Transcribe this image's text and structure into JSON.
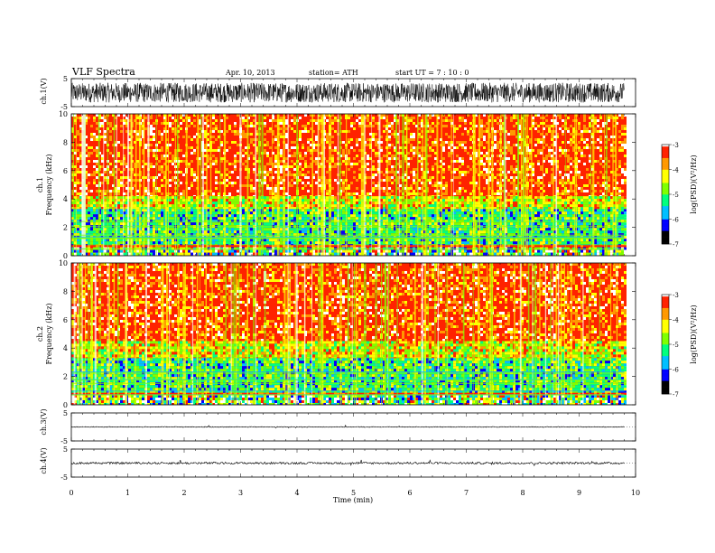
{
  "header": {
    "title": "VLF  Spectra",
    "date": "Apr. 10, 2013",
    "station": "station= ATH",
    "start": "start  UT  =   7  : 10 : 0"
  },
  "chart_data": [
    {
      "id": "ch1-waveform",
      "type": "line",
      "ylabel": "ch.1(V)",
      "ylim": [
        -5,
        5
      ],
      "yticks": [
        "5",
        "-5"
      ],
      "xlim": [
        0,
        10
      ],
      "x_end": 9.8,
      "amplitude_v": 3.5,
      "color": "#000000"
    },
    {
      "id": "ch1-spectrogram",
      "type": "heatmap",
      "ylabel": "ch.1\nFrequency (kHz)",
      "ylim": [
        0,
        10
      ],
      "yticks": [
        "0",
        "2",
        "4",
        "6",
        "8",
        "10"
      ],
      "xlim": [
        0,
        10
      ],
      "x_end": 9.8,
      "colorbar": {
        "label": "log(PSD)(V²/Hz)",
        "range": [
          -7,
          -3
        ],
        "ticks": [
          "-3",
          "-4",
          "-5",
          "-6",
          "-7"
        ]
      },
      "bands": [
        {
          "f": [
            0,
            0.6
          ],
          "level": "mixed-low"
        },
        {
          "f": [
            0.6,
            0.75
          ],
          "level": "red-line"
        },
        {
          "f": [
            0.75,
            3.3
          ],
          "level": "green"
        },
        {
          "f": [
            3.3,
            4.2
          ],
          "level": "yellow-green"
        },
        {
          "f": [
            4.2,
            10
          ],
          "level": "red"
        }
      ]
    },
    {
      "id": "ch2-spectrogram",
      "type": "heatmap",
      "ylabel": "ch.2\nFrequency (kHz)",
      "ylim": [
        0,
        10
      ],
      "yticks": [
        "0",
        "2",
        "4",
        "6",
        "8",
        "10"
      ],
      "xlim": [
        0,
        10
      ],
      "x_end": 9.8,
      "colorbar": {
        "label": "log(PSD)(V²/Hz)",
        "range": [
          -7,
          -3
        ],
        "ticks": [
          "-3",
          "-4",
          "-5",
          "-6",
          "-7"
        ]
      },
      "bands": [
        {
          "f": [
            0,
            0.7
          ],
          "level": "mixed-low"
        },
        {
          "f": [
            0.7,
            0.85
          ],
          "level": "red-line"
        },
        {
          "f": [
            0.85,
            3.3
          ],
          "level": "green"
        },
        {
          "f": [
            3.3,
            4.5
          ],
          "level": "yellow-green"
        },
        {
          "f": [
            4.5,
            10
          ],
          "level": "red"
        }
      ]
    },
    {
      "id": "ch3-waveform",
      "type": "line",
      "ylabel": "ch.3(V)",
      "ylim": [
        -5,
        5
      ],
      "yticks": [
        "5",
        "-5"
      ],
      "xlim": [
        0,
        10
      ],
      "x_end": 9.8,
      "amplitude_v": 0.15,
      "color": "#000000"
    },
    {
      "id": "ch4-waveform",
      "type": "line",
      "ylabel": "ch.4(V)",
      "ylim": [
        -5,
        5
      ],
      "yticks": [
        "5",
        "-5"
      ],
      "xlim": [
        0,
        10
      ],
      "x_end": 9.8,
      "amplitude_v": 0.4,
      "color": "#000000"
    }
  ],
  "xaxis": {
    "label": "Time  (min)",
    "ticks": [
      "0",
      "1",
      "2",
      "3",
      "4",
      "5",
      "6",
      "7",
      "8",
      "9",
      "10"
    ]
  },
  "colorscale": [
    "#000000",
    "#0000ff",
    "#00bfff",
    "#00ff7f",
    "#7fff00",
    "#ffff00",
    "#ff9900",
    "#ff2200",
    "#ffffff"
  ]
}
